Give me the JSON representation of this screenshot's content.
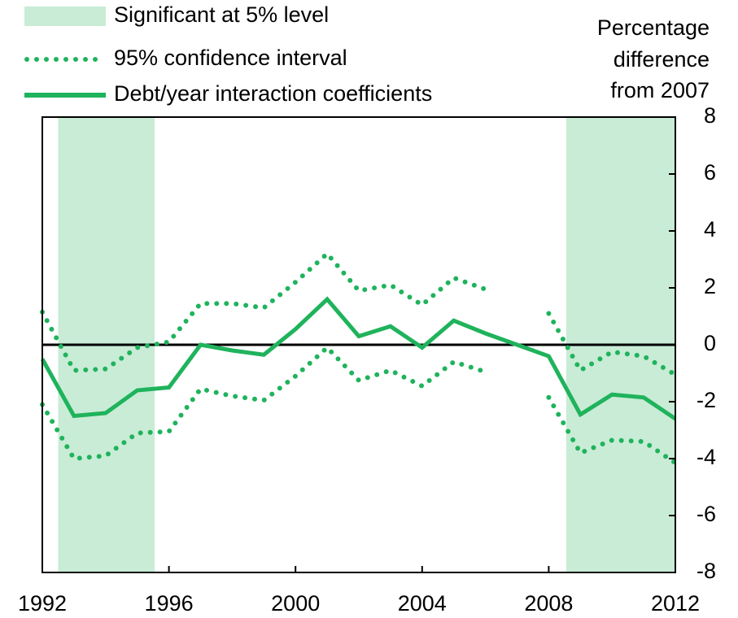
{
  "chart_data": {
    "type": "line",
    "y_label": [
      "Percentage",
      "difference",
      "from 2007"
    ],
    "x": [
      1992,
      1993,
      1994,
      1995,
      1996,
      1997,
      1998,
      1999,
      2000,
      2001,
      2002,
      2003,
      2004,
      2005,
      2006,
      2007,
      2008,
      2009,
      2010,
      2011,
      2012
    ],
    "series": [
      {
        "name": "Debt/year interaction coefficients",
        "color": "#1fb35c",
        "values": [
          -0.5,
          -2.5,
          -2.4,
          -1.6,
          -1.5,
          0,
          -0.2,
          -0.35,
          0.55,
          1.6,
          0.3,
          0.65,
          -0.1,
          0.85,
          0.4,
          0,
          -0.4,
          -2.45,
          -1.75,
          -1.85,
          -2.6
        ]
      }
    ],
    "confidence_interval": {
      "name": "95% confidence interval",
      "color": "#1fb35c",
      "upper": [
        1.15,
        -0.9,
        -0.85,
        -0.1,
        0.1,
        1.45,
        1.45,
        1.3,
        2.2,
        3.2,
        1.9,
        2.1,
        1.4,
        2.35,
        1.95,
        null,
        1.1,
        -0.9,
        -0.25,
        -0.4,
        -1.05
      ],
      "lower": [
        -2.1,
        -4.0,
        -3.9,
        -3.1,
        -3.05,
        -1.55,
        -1.8,
        -1.95,
        -1.1,
        -0.1,
        -1.25,
        -0.9,
        -1.45,
        -0.6,
        -0.95,
        null,
        -1.85,
        -3.8,
        -3.35,
        -3.4,
        -4.15
      ]
    },
    "shaded": {
      "name": "Significant at 5% level",
      "color": "#c9ecd6",
      "regions": [
        [
          1992.5,
          1995.55
        ],
        [
          2008.55,
          2012
        ]
      ]
    },
    "xlim": [
      1992,
      2012
    ],
    "xticks": [
      1992,
      1996,
      2000,
      2004,
      2008,
      2012
    ],
    "ylim": [
      -8,
      8
    ],
    "yticks": [
      -8,
      -6,
      -4,
      -2,
      0,
      2,
      4,
      6,
      8
    ]
  }
}
